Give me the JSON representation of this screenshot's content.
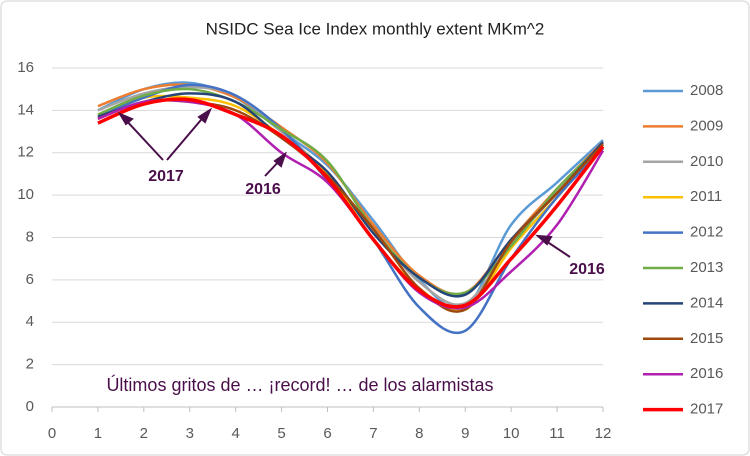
{
  "chart_data": {
    "type": "line",
    "title": "NSIDC Sea Ice Index monthly extent  MKm^2",
    "x": [
      1,
      2,
      3,
      4,
      5,
      6,
      7,
      8,
      9,
      10,
      11,
      12
    ],
    "xlim": [
      0,
      12
    ],
    "xticks": [
      0,
      1,
      2,
      3,
      4,
      5,
      6,
      7,
      8,
      9,
      10,
      11,
      12
    ],
    "ylim": [
      0,
      16
    ],
    "yticks": [
      0,
      2,
      4,
      6,
      8,
      10,
      12,
      14,
      16
    ],
    "grid": true,
    "legend": "right",
    "series": [
      {
        "name": "2008",
        "color": "#5b9bd5",
        "values": [
          14.0,
          15.0,
          15.3,
          14.6,
          13.0,
          11.4,
          8.8,
          6.0,
          4.7,
          8.6,
          10.6,
          12.6
        ]
      },
      {
        "name": "2009",
        "color": "#ed7d31",
        "values": [
          14.2,
          15.0,
          15.2,
          14.6,
          13.2,
          11.5,
          8.6,
          6.2,
          5.4,
          7.9,
          10.3,
          12.5
        ]
      },
      {
        "name": "2010",
        "color": "#a5a5a5",
        "values": [
          14.0,
          14.8,
          15.1,
          14.7,
          13.0,
          11.0,
          8.4,
          5.9,
          4.9,
          7.7,
          10.1,
          12.4
        ]
      },
      {
        "name": "2011",
        "color": "#ffc000",
        "values": [
          13.8,
          14.6,
          14.6,
          14.2,
          12.8,
          11.0,
          7.9,
          5.6,
          4.6,
          7.5,
          9.9,
          12.4
        ]
      },
      {
        "name": "2012",
        "color": "#4472c4",
        "values": [
          13.7,
          14.6,
          15.2,
          14.7,
          13.1,
          10.7,
          7.9,
          4.7,
          3.6,
          7.0,
          9.9,
          12.2
        ]
      },
      {
        "name": "2013",
        "color": "#70ad47",
        "values": [
          13.8,
          14.7,
          15.0,
          14.4,
          13.1,
          11.6,
          8.4,
          6.1,
          5.4,
          7.6,
          10.3,
          12.4
        ]
      },
      {
        "name": "2014",
        "color": "#264478",
        "values": [
          13.7,
          14.4,
          14.8,
          14.4,
          12.7,
          11.1,
          8.2,
          6.1,
          5.3,
          7.9,
          10.1,
          12.5
        ]
      },
      {
        "name": "2015",
        "color": "#9e480e",
        "values": [
          13.6,
          14.4,
          14.4,
          14.0,
          12.7,
          10.9,
          8.4,
          5.6,
          4.6,
          7.8,
          10.1,
          12.4
        ]
      },
      {
        "name": "2016",
        "color": "#b01fb0",
        "values": [
          13.6,
          14.4,
          14.4,
          13.8,
          12.0,
          10.6,
          7.9,
          5.4,
          4.7,
          6.4,
          8.6,
          12.1
        ]
      },
      {
        "name": "2017",
        "color": "#ff0000",
        "values": [
          13.4,
          14.3,
          14.5,
          13.8,
          12.8,
          10.8,
          7.9,
          5.5,
          4.8,
          7.0,
          9.5,
          12.3
        ]
      }
    ],
    "annotations": [
      "2017",
      "2016",
      "2016",
      "Últimos gritos de … ¡record! … de los alarmistas"
    ]
  }
}
